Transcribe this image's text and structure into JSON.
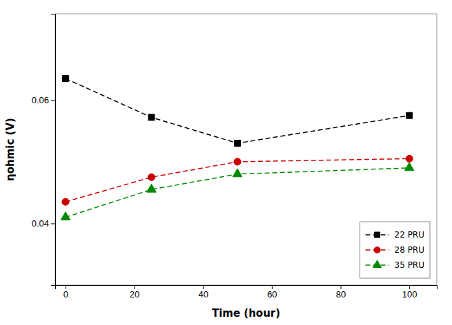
{
  "chart_data": {
    "type": "line",
    "x_label": "Time (hour)",
    "y_label": "ηohmic (V)",
    "x": [
      0,
      25,
      50,
      100
    ],
    "series": [
      {
        "name": "22 PRU",
        "color": "#000000",
        "marker": "square",
        "line_style": "dashed",
        "values": [
          0.0635,
          0.0572,
          0.053,
          0.0575
        ]
      },
      {
        "name": "28 PRU",
        "color": "#cc0000",
        "marker": "circle",
        "line_style": "dashed",
        "values": [
          0.0435,
          0.0475,
          0.05,
          0.0505
        ]
      },
      {
        "name": "35 PRU",
        "color": "#008800",
        "marker": "triangle",
        "line_style": "dashed",
        "values": [
          0.041,
          0.0455,
          0.048,
          0.049
        ]
      }
    ],
    "xlim": [
      -3,
      108
    ],
    "ylim": [
      0.03,
      0.074
    ],
    "xticks": [
      0,
      20,
      40,
      60,
      80,
      100
    ],
    "yticks": [
      0.04,
      0.06
    ],
    "legend": "lower right",
    "grid": false
  }
}
